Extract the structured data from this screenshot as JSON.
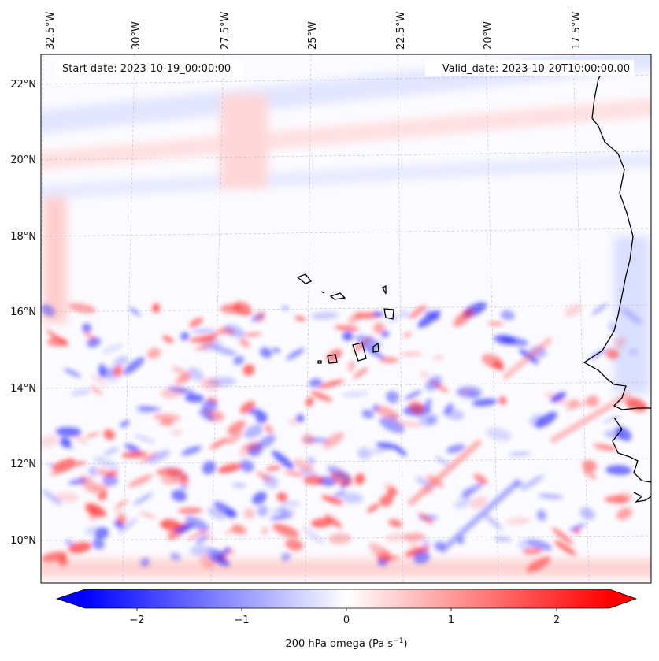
{
  "map": {
    "start_date": "Start date: 2023-10-19_00:00:00",
    "valid_date": "Valid_date: 2023-10-20T10:00:00.00",
    "lon_labels": [
      "32.5°W",
      "30°W",
      "27.5°W",
      "25°W",
      "22.5°W",
      "20°W",
      "17.5°W"
    ],
    "lat_labels": [
      "22°N",
      "20°N",
      "18°N",
      "16°N",
      "14°N",
      "12°N",
      "10°N"
    ],
    "field": "200 hPa omega",
    "colormap": "bwr",
    "value_range": [
      -2.5,
      2.5
    ],
    "colors": {
      "negative": "#0000ff",
      "zero": "#ffffff",
      "positive": "#ff0000",
      "coast": "#000000"
    }
  },
  "colorbar": {
    "ticks": [
      "−2",
      "−1",
      "0",
      "1",
      "2"
    ],
    "label_main": "200 hPa omega (Pa s",
    "label_sup": "−1",
    "label_end": ")"
  }
}
